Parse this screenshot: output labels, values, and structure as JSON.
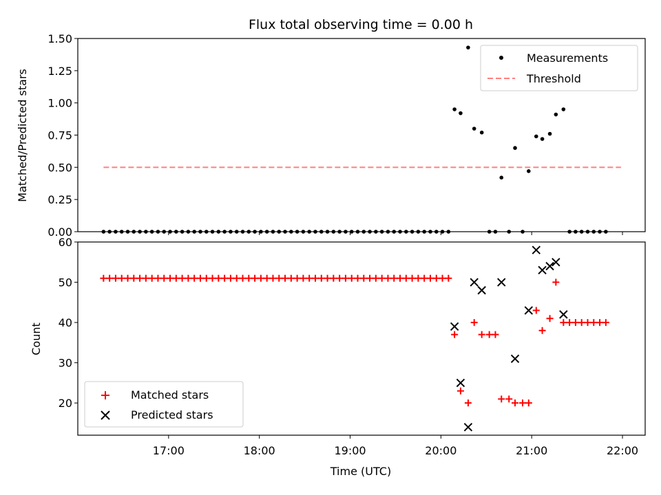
{
  "title": "Flux total observing time = 0.00 h",
  "colors": {
    "measurement": "#000000",
    "threshold": "#ff7f7f",
    "matched": "#ff0000",
    "predicted": "#000000"
  },
  "chart_data": [
    {
      "type": "scatter",
      "ylabel": "Matched/Predicted stars",
      "xlabel": "",
      "xlim": [
        "16:00",
        "22:15"
      ],
      "ylim": [
        0,
        1.5
      ],
      "yticks": [
        "0.00",
        "0.25",
        "0.50",
        "0.75",
        "1.00",
        "1.25",
        "1.50"
      ],
      "legend": {
        "position": "top-right",
        "entries": [
          "Measurements",
          "Threshold"
        ]
      },
      "threshold": {
        "name": "Threshold",
        "value": 0.5,
        "x_range": [
          "16:17",
          "21:59"
        ]
      },
      "series": [
        {
          "name": "Measurements",
          "points": [
            [
              "16:17",
              0
            ],
            [
              "16:21",
              0
            ],
            [
              "16:25",
              0
            ],
            [
              "16:29",
              0
            ],
            [
              "16:33",
              0
            ],
            [
              "16:37",
              0
            ],
            [
              "16:41",
              0
            ],
            [
              "16:45",
              0
            ],
            [
              "16:49",
              0
            ],
            [
              "16:53",
              0
            ],
            [
              "16:57",
              0
            ],
            [
              "17:01",
              0
            ],
            [
              "17:05",
              0
            ],
            [
              "17:09",
              0
            ],
            [
              "17:13",
              0
            ],
            [
              "17:17",
              0
            ],
            [
              "17:21",
              0
            ],
            [
              "17:25",
              0
            ],
            [
              "17:29",
              0
            ],
            [
              "17:33",
              0
            ],
            [
              "17:37",
              0
            ],
            [
              "17:41",
              0
            ],
            [
              "17:45",
              0
            ],
            [
              "17:49",
              0
            ],
            [
              "17:53",
              0
            ],
            [
              "17:57",
              0
            ],
            [
              "18:01",
              0
            ],
            [
              "18:05",
              0
            ],
            [
              "18:09",
              0
            ],
            [
              "18:13",
              0
            ],
            [
              "18:17",
              0
            ],
            [
              "18:21",
              0
            ],
            [
              "18:25",
              0
            ],
            [
              "18:29",
              0
            ],
            [
              "18:33",
              0
            ],
            [
              "18:37",
              0
            ],
            [
              "18:41",
              0
            ],
            [
              "18:45",
              0
            ],
            [
              "18:49",
              0
            ],
            [
              "18:53",
              0
            ],
            [
              "18:57",
              0
            ],
            [
              "19:01",
              0
            ],
            [
              "19:05",
              0
            ],
            [
              "19:09",
              0
            ],
            [
              "19:13",
              0
            ],
            [
              "19:17",
              0
            ],
            [
              "19:21",
              0
            ],
            [
              "19:25",
              0
            ],
            [
              "19:29",
              0
            ],
            [
              "19:33",
              0
            ],
            [
              "19:37",
              0
            ],
            [
              "19:41",
              0
            ],
            [
              "19:45",
              0
            ],
            [
              "19:49",
              0
            ],
            [
              "19:53",
              0
            ],
            [
              "19:57",
              0
            ],
            [
              "20:01",
              0
            ],
            [
              "20:05",
              0
            ],
            [
              "20:09",
              0.95
            ],
            [
              "20:13",
              0.92
            ],
            [
              "20:18",
              1.43
            ],
            [
              "20:22",
              0.8
            ],
            [
              "20:27",
              0.77
            ],
            [
              "20:32",
              0
            ],
            [
              "20:36",
              0
            ],
            [
              "20:40",
              0.42
            ],
            [
              "20:45",
              0
            ],
            [
              "20:49",
              0.65
            ],
            [
              "20:54",
              0
            ],
            [
              "20:58",
              0.47
            ],
            [
              "21:03",
              0.74
            ],
            [
              "21:07",
              0.72
            ],
            [
              "21:12",
              0.76
            ],
            [
              "21:16",
              0.91
            ],
            [
              "21:21",
              0.95
            ],
            [
              "21:25",
              0
            ],
            [
              "21:29",
              0
            ],
            [
              "21:33",
              0
            ],
            [
              "21:37",
              0
            ],
            [
              "21:41",
              0
            ],
            [
              "21:45",
              0
            ],
            [
              "21:49",
              0
            ]
          ]
        }
      ]
    },
    {
      "type": "scatter",
      "ylabel": "Count",
      "xlabel": "Time (UTC)",
      "xlim": [
        "16:00",
        "22:15"
      ],
      "ylim": [
        12,
        60
      ],
      "yticks": [
        "20",
        "30",
        "40",
        "50",
        "60"
      ],
      "xticks": [
        "17:00",
        "18:00",
        "19:00",
        "20:00",
        "21:00",
        "22:00"
      ],
      "legend": {
        "position": "bottom-left",
        "entries": [
          "Matched stars",
          "Predicted stars"
        ]
      },
      "series": [
        {
          "name": "Matched stars",
          "points": [
            [
              "16:17",
              51
            ],
            [
              "16:21",
              51
            ],
            [
              "16:25",
              51
            ],
            [
              "16:29",
              51
            ],
            [
              "16:33",
              51
            ],
            [
              "16:37",
              51
            ],
            [
              "16:41",
              51
            ],
            [
              "16:45",
              51
            ],
            [
              "16:49",
              51
            ],
            [
              "16:53",
              51
            ],
            [
              "16:57",
              51
            ],
            [
              "17:01",
              51
            ],
            [
              "17:05",
              51
            ],
            [
              "17:09",
              51
            ],
            [
              "17:13",
              51
            ],
            [
              "17:17",
              51
            ],
            [
              "17:21",
              51
            ],
            [
              "17:25",
              51
            ],
            [
              "17:29",
              51
            ],
            [
              "17:33",
              51
            ],
            [
              "17:37",
              51
            ],
            [
              "17:41",
              51
            ],
            [
              "17:45",
              51
            ],
            [
              "17:49",
              51
            ],
            [
              "17:53",
              51
            ],
            [
              "17:57",
              51
            ],
            [
              "18:01",
              51
            ],
            [
              "18:05",
              51
            ],
            [
              "18:09",
              51
            ],
            [
              "18:13",
              51
            ],
            [
              "18:17",
              51
            ],
            [
              "18:21",
              51
            ],
            [
              "18:25",
              51
            ],
            [
              "18:29",
              51
            ],
            [
              "18:33",
              51
            ],
            [
              "18:37",
              51
            ],
            [
              "18:41",
              51
            ],
            [
              "18:45",
              51
            ],
            [
              "18:49",
              51
            ],
            [
              "18:53",
              51
            ],
            [
              "18:57",
              51
            ],
            [
              "19:01",
              51
            ],
            [
              "19:05",
              51
            ],
            [
              "19:09",
              51
            ],
            [
              "19:13",
              51
            ],
            [
              "19:17",
              51
            ],
            [
              "19:21",
              51
            ],
            [
              "19:25",
              51
            ],
            [
              "19:29",
              51
            ],
            [
              "19:33",
              51
            ],
            [
              "19:37",
              51
            ],
            [
              "19:41",
              51
            ],
            [
              "19:45",
              51
            ],
            [
              "19:49",
              51
            ],
            [
              "19:53",
              51
            ],
            [
              "19:57",
              51
            ],
            [
              "20:01",
              51
            ],
            [
              "20:05",
              51
            ],
            [
              "20:09",
              37
            ],
            [
              "20:13",
              23
            ],
            [
              "20:18",
              20
            ],
            [
              "20:22",
              40
            ],
            [
              "20:27",
              37
            ],
            [
              "20:32",
              37
            ],
            [
              "20:36",
              37
            ],
            [
              "20:40",
              21
            ],
            [
              "20:45",
              21
            ],
            [
              "20:49",
              20
            ],
            [
              "20:54",
              20
            ],
            [
              "20:58",
              20
            ],
            [
              "21:03",
              43
            ],
            [
              "21:07",
              38
            ],
            [
              "21:12",
              41
            ],
            [
              "21:16",
              50
            ],
            [
              "21:21",
              40
            ],
            [
              "21:25",
              40
            ],
            [
              "21:29",
              40
            ],
            [
              "21:33",
              40
            ],
            [
              "21:37",
              40
            ],
            [
              "21:41",
              40
            ],
            [
              "21:45",
              40
            ],
            [
              "21:49",
              40
            ]
          ]
        },
        {
          "name": "Predicted stars",
          "points": [
            [
              "20:09",
              39
            ],
            [
              "20:13",
              25
            ],
            [
              "20:18",
              14
            ],
            [
              "20:22",
              50
            ],
            [
              "20:27",
              48
            ],
            [
              "20:40",
              50
            ],
            [
              "20:49",
              31
            ],
            [
              "20:58",
              43
            ],
            [
              "21:03",
              58
            ],
            [
              "21:07",
              53
            ],
            [
              "21:12",
              54
            ],
            [
              "21:16",
              55
            ],
            [
              "21:21",
              42
            ]
          ]
        }
      ]
    }
  ]
}
